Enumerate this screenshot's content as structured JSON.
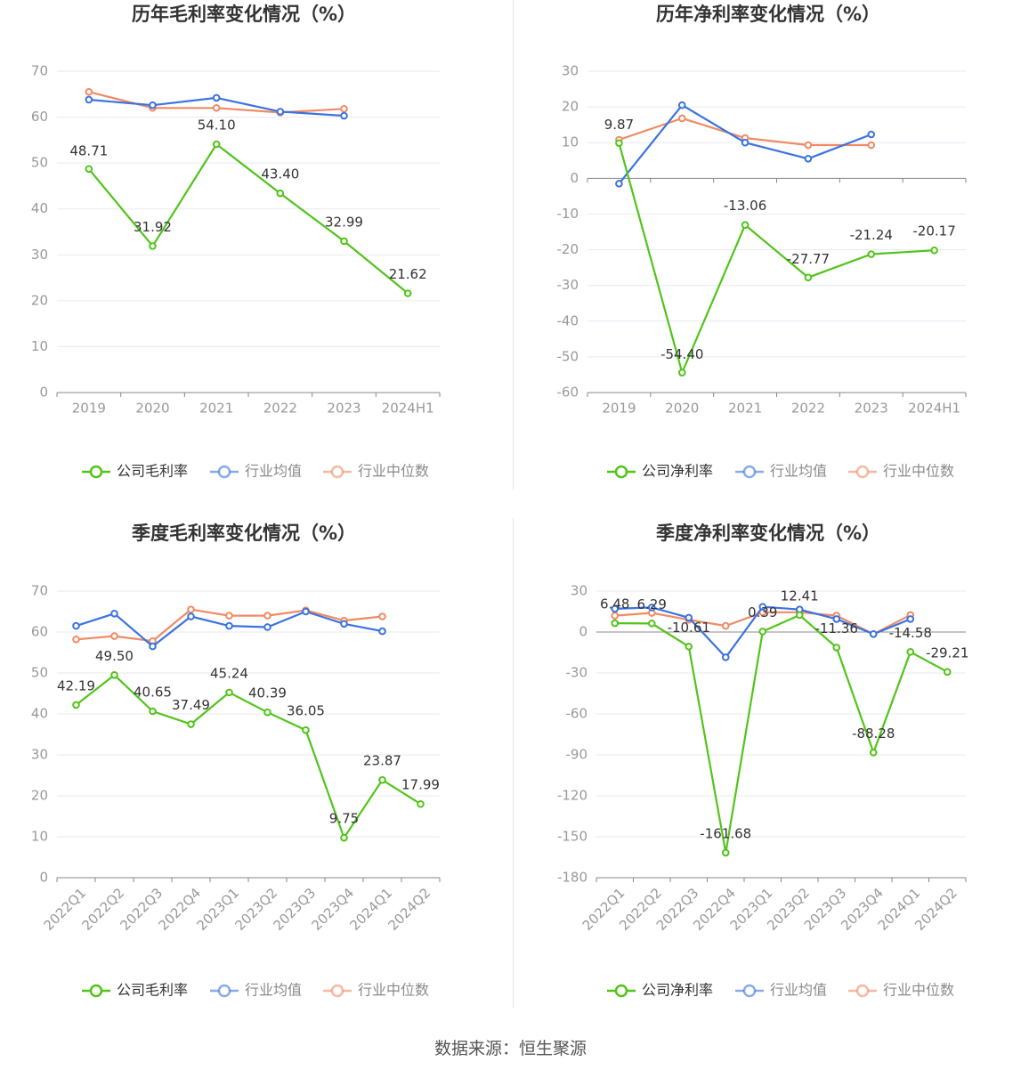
{
  "source": "数据来源：恒生聚源",
  "colors": {
    "company": "#52c41a",
    "avg": "#3b73e0",
    "median": "#f08a64",
    "axis": "#999999",
    "grid": "#e8eaf2",
    "title": "#333333",
    "label": "#333333"
  },
  "chart_data": [
    {
      "type": "line",
      "title": "历年毛利率变化情况（%）",
      "categories": [
        "2019",
        "2020",
        "2021",
        "2022",
        "2023",
        "2024H1"
      ],
      "ylim": [
        0,
        70
      ],
      "yticks": [
        0,
        10,
        20,
        30,
        40,
        50,
        60,
        70
      ],
      "series": [
        {
          "name": "公司毛利率",
          "role": "company",
          "values": [
            48.71,
            31.92,
            54.1,
            43.4,
            32.99,
            21.62
          ],
          "labels": [
            "48.71",
            "31.92",
            "54.10",
            "43.40",
            "32.99",
            "21.62"
          ]
        },
        {
          "name": "行业均值",
          "role": "avg",
          "values": [
            63.8,
            62.6,
            64.2,
            61.2,
            60.3,
            null
          ]
        },
        {
          "name": "行业中位数",
          "role": "median",
          "values": [
            65.5,
            62.0,
            62.0,
            61.0,
            61.8,
            null
          ]
        }
      ],
      "legend": "bottom",
      "grid": true
    },
    {
      "type": "line",
      "title": "历年净利率变化情况（%）",
      "categories": [
        "2019",
        "2020",
        "2021",
        "2022",
        "2023",
        "2024H1"
      ],
      "ylim": [
        -60,
        30
      ],
      "yticks": [
        -60,
        -50,
        -40,
        -30,
        -20,
        -10,
        0,
        10,
        20,
        30
      ],
      "series": [
        {
          "name": "公司净利率",
          "role": "company",
          "values": [
            9.87,
            -54.4,
            -13.06,
            -27.77,
            -21.24,
            -20.17
          ],
          "labels": [
            "9.87",
            "-54.40",
            "-13.06",
            "-27.77",
            "-21.24",
            "-20.17"
          ]
        },
        {
          "name": "行业均值",
          "role": "avg",
          "values": [
            -1.5,
            20.5,
            10.0,
            5.5,
            12.3,
            null
          ]
        },
        {
          "name": "行业中位数",
          "role": "median",
          "values": [
            10.8,
            16.8,
            11.3,
            9.3,
            9.3,
            null
          ]
        }
      ],
      "legend": "bottom",
      "grid": true
    },
    {
      "type": "line",
      "title": "季度毛利率变化情况（%）",
      "categories": [
        "2022Q1",
        "2022Q2",
        "2022Q3",
        "2022Q4",
        "2023Q1",
        "2023Q2",
        "2023Q3",
        "2023Q4",
        "2024Q1",
        "2024Q2"
      ],
      "ylim": [
        0,
        70
      ],
      "yticks": [
        0,
        10,
        20,
        30,
        40,
        50,
        60,
        70
      ],
      "series": [
        {
          "name": "公司毛利率",
          "role": "company",
          "values": [
            42.19,
            49.5,
            40.65,
            37.49,
            45.24,
            40.39,
            36.05,
            9.75,
            23.87,
            17.99
          ],
          "labels": [
            "42.19",
            "49.50",
            "40.65",
            "37.49",
            "45.24",
            "40.39",
            "36.05",
            "9.75",
            "23.87",
            "17.99"
          ]
        },
        {
          "name": "行业均值",
          "role": "avg",
          "values": [
            61.5,
            64.5,
            56.5,
            63.8,
            61.5,
            61.2,
            65.0,
            62.0,
            60.2,
            null
          ]
        },
        {
          "name": "行业中位数",
          "role": "median",
          "values": [
            58.2,
            59.0,
            57.8,
            65.5,
            64.0,
            64.0,
            65.3,
            62.8,
            63.8,
            null
          ]
        }
      ],
      "legend": "bottom",
      "grid": true
    },
    {
      "type": "line",
      "title": "季度净利率变化情况（%）",
      "categories": [
        "2022Q1",
        "2022Q2",
        "2022Q3",
        "2022Q4",
        "2023Q1",
        "2023Q2",
        "2023Q3",
        "2023Q4",
        "2024Q1",
        "2024Q2"
      ],
      "ylim": [
        -180,
        30
      ],
      "yticks": [
        -180,
        -150,
        -120,
        -90,
        -60,
        -30,
        0,
        30
      ],
      "series": [
        {
          "name": "公司净利率",
          "role": "company",
          "values": [
            6.48,
            6.29,
            -10.61,
            -161.68,
            0.39,
            12.41,
            -11.36,
            -88.28,
            -14.58,
            -29.21
          ],
          "labels": [
            "6.48",
            "6.29",
            "-10.61",
            "-161.68",
            "0.39",
            "12.41",
            "-11.36",
            "-88.28",
            "-14.58",
            "-29.21"
          ]
        },
        {
          "name": "行业均值",
          "role": "avg",
          "values": [
            17.0,
            18.0,
            10.5,
            -18.5,
            18.5,
            16.5,
            9.5,
            -1.5,
            9.5,
            null
          ]
        },
        {
          "name": "行业中位数",
          "role": "median",
          "values": [
            12.0,
            14.0,
            9.0,
            4.5,
            14.5,
            14.5,
            12.0,
            -1.5,
            12.5,
            null
          ]
        }
      ],
      "legend": "bottom",
      "grid": true
    }
  ]
}
